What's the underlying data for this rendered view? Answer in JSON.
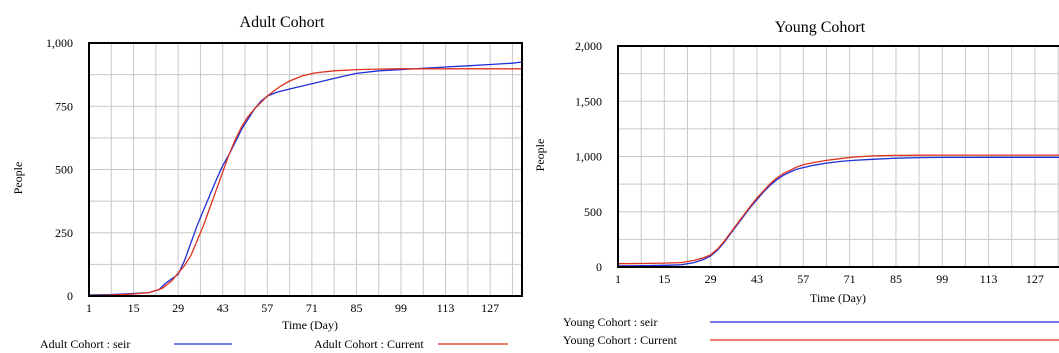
{
  "chart_data": [
    {
      "type": "line",
      "title": "Adult Cohort",
      "xlabel": "Time (Day)",
      "ylabel": "People",
      "xlim": [
        1,
        137
      ],
      "ylim": [
        0,
        1000
      ],
      "xticks": [
        1,
        15,
        29,
        43,
        57,
        71,
        85,
        99,
        113,
        127
      ],
      "xtick_labels": [
        "1",
        "15",
        "29",
        "43",
        "57",
        "71",
        "85",
        "99",
        "113",
        "127"
      ],
      "yticks": [
        0,
        250,
        500,
        750,
        1000
      ],
      "ytick_labels": [
        "0",
        "250",
        "500",
        "750",
        "1,000"
      ],
      "grid": true,
      "series": [
        {
          "name": "Adult Cohort : seir",
          "color": "#1f2fd6",
          "x": [
            1,
            8,
            15,
            20,
            23,
            25,
            27,
            29,
            31,
            33,
            35,
            37,
            39,
            41,
            43,
            45,
            47,
            49,
            51,
            53,
            55,
            57,
            60,
            64,
            68,
            72,
            78,
            85,
            92,
            99,
            106,
            113,
            120,
            127,
            134,
            137
          ],
          "y": [
            4,
            6,
            10,
            14,
            25,
            50,
            68,
            85,
            140,
            210,
            280,
            340,
            400,
            460,
            515,
            560,
            610,
            660,
            700,
            740,
            770,
            790,
            805,
            818,
            830,
            842,
            860,
            880,
            890,
            895,
            900,
            905,
            910,
            915,
            920,
            925
          ]
        },
        {
          "name": "Adult Cohort : Current",
          "color": "#e0301e",
          "x": [
            1,
            8,
            15,
            20,
            24,
            27,
            29,
            31,
            33,
            35,
            37,
            39,
            41,
            43,
            45,
            47,
            49,
            51,
            53,
            55,
            57,
            59,
            61,
            64,
            68,
            72,
            78,
            85,
            92,
            99,
            113,
            127,
            137
          ],
          "y": [
            2,
            4,
            8,
            14,
            30,
            60,
            90,
            120,
            160,
            220,
            280,
            350,
            420,
            490,
            560,
            620,
            670,
            710,
            740,
            765,
            790,
            810,
            828,
            850,
            870,
            882,
            890,
            895,
            897,
            898,
            898,
            898,
            898
          ]
        }
      ]
    },
    {
      "type": "line",
      "title": "Young Cohort",
      "xlabel": "Time (Day)",
      "ylabel": "People",
      "xlim": [
        1,
        137
      ],
      "ylim": [
        0,
        2000
      ],
      "xticks": [
        1,
        15,
        29,
        43,
        57,
        71,
        85,
        99,
        113,
        127
      ],
      "xtick_labels": [
        "1",
        "15",
        "29",
        "43",
        "57",
        "71",
        "85",
        "99",
        "113",
        "127"
      ],
      "yticks": [
        0,
        500,
        1000,
        1500,
        2000
      ],
      "ytick_labels": [
        "0",
        "500",
        "1,000",
        "1,500",
        "2,000"
      ],
      "grid": true,
      "series": [
        {
          "name": "Young Cohort : seir",
          "color": "#1f2fd6",
          "x": [
            1,
            8,
            15,
            20,
            24,
            27,
            29,
            31,
            33,
            35,
            37,
            39,
            41,
            43,
            45,
            47,
            49,
            51,
            53,
            55,
            57,
            60,
            64,
            68,
            72,
            78,
            85,
            92,
            99,
            113,
            127,
            137
          ],
          "y": [
            10,
            12,
            15,
            20,
            40,
            70,
            100,
            150,
            220,
            300,
            380,
            460,
            540,
            610,
            680,
            740,
            790,
            830,
            860,
            885,
            900,
            920,
            940,
            955,
            965,
            975,
            985,
            990,
            992,
            993,
            993,
            993
          ]
        },
        {
          "name": "Young Cohort : Current",
          "color": "#e0301e",
          "x": [
            1,
            8,
            15,
            20,
            24,
            27,
            29,
            31,
            33,
            35,
            37,
            39,
            41,
            43,
            45,
            47,
            49,
            51,
            53,
            55,
            57,
            60,
            64,
            68,
            72,
            78,
            85,
            92,
            99,
            113,
            127,
            137
          ],
          "y": [
            30,
            32,
            35,
            40,
            60,
            85,
            110,
            160,
            230,
            310,
            390,
            470,
            550,
            625,
            690,
            755,
            805,
            845,
            875,
            905,
            925,
            945,
            965,
            980,
            995,
            1005,
            1010,
            1012,
            1013,
            1013,
            1013,
            1013
          ]
        }
      ]
    }
  ]
}
